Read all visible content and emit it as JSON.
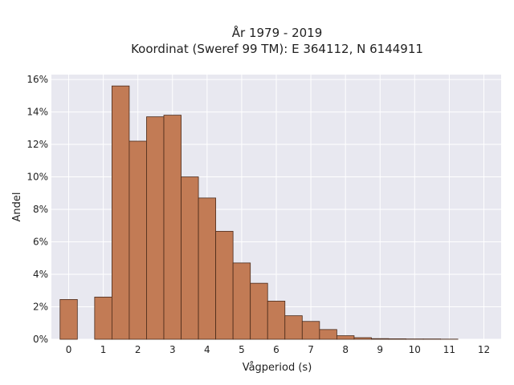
{
  "chart_data": {
    "type": "bar",
    "title": "År 1979 - 2019",
    "subtitle": "Koordinat (Sweref 99 TM): E 364112, N 6144911",
    "xlabel": "Vågperiod (s)",
    "ylabel": "Andel",
    "xlim": [
      -0.5,
      12.5
    ],
    "ylim": [
      0,
      16.3
    ],
    "x_ticks": [
      0,
      1,
      2,
      3,
      4,
      5,
      6,
      7,
      8,
      9,
      10,
      11,
      12
    ],
    "y_ticks": [
      0,
      2,
      4,
      6,
      8,
      10,
      12,
      14,
      16
    ],
    "y_tick_labels": [
      "0%",
      "2%",
      "4%",
      "6%",
      "8%",
      "10%",
      "12%",
      "14%",
      "16%"
    ],
    "bin_width": 0.5,
    "bins_start": [
      -0.25,
      0.75,
      1.25,
      1.75,
      2.25,
      2.75,
      3.25,
      3.75,
      4.25,
      4.75,
      5.25,
      5.75,
      6.25,
      6.75,
      7.25,
      7.75,
      8.25,
      8.75,
      9.25,
      9.75,
      10.25,
      10.75
    ],
    "values": [
      2.45,
      2.6,
      15.6,
      12.2,
      13.7,
      13.8,
      10.0,
      8.7,
      6.65,
      4.7,
      3.45,
      2.35,
      1.45,
      1.1,
      0.6,
      0.22,
      0.1,
      0.04,
      0.03,
      0.02,
      0.02,
      0.01
    ],
    "grid": true,
    "colors": {
      "bar_fill": "#c27b55",
      "bar_stroke": "#4a2a1a",
      "plot_bg": "#e8e8f0",
      "grid": "#ffffff"
    }
  }
}
